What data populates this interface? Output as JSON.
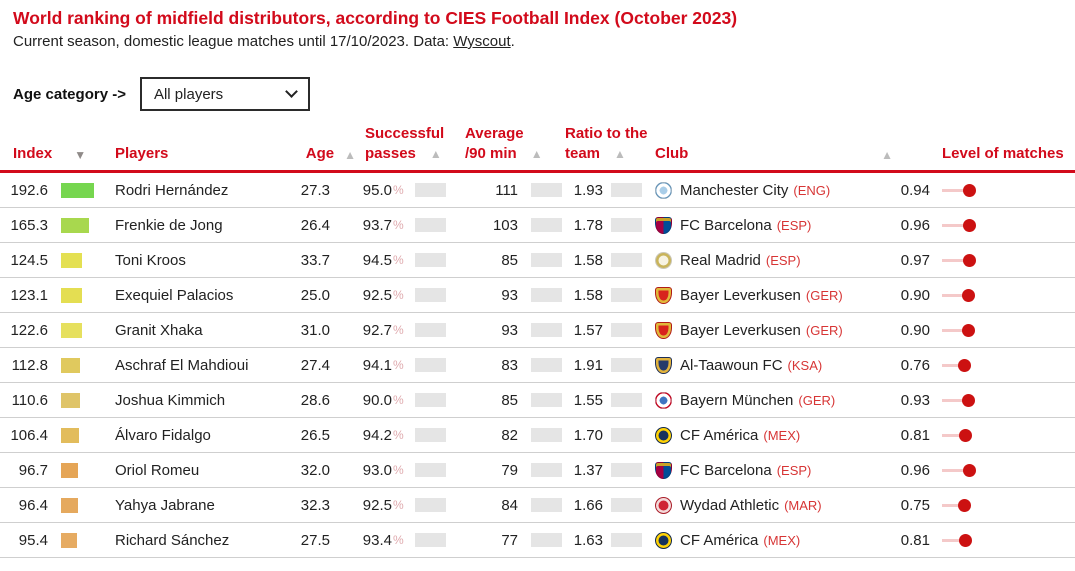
{
  "page": {
    "title": "World ranking of midfield distributors, according to CIES Football Index (October 2023)",
    "subtitle_prefix": "Current season, domestic league matches until 17/10/2023. Data: ",
    "subtitle_link": "Wyscout",
    "subtitle_suffix": "."
  },
  "filter": {
    "label": "Age category ->",
    "selected": "All players"
  },
  "icons": {
    "sort_desc": "▼",
    "sort_asc": "▲"
  },
  "colors": {
    "accent_red": "#d20a1b",
    "dot_red": "#cc1111",
    "track_pink": "#f4c9c9",
    "bar_gray": "#e5e5e5"
  },
  "table": {
    "headers": {
      "index": "Index",
      "players": "Players",
      "age": "Age",
      "passes_line1": "Successful",
      "passes_line2": "passes",
      "avg_line1": "Average",
      "avg_line2": "/90 min",
      "ratio_line1": "Ratio to the",
      "ratio_line2": "team",
      "club": "Club",
      "level": "Level of matches"
    },
    "passes_unit": "%",
    "rows": [
      {
        "index": "192.6",
        "index_color": "#76d64f",
        "player": "Rodri Hernández",
        "age": "27.3",
        "passes": "95.0",
        "avg_per_90": "111",
        "ratio": "1.93",
        "club": "Manchester City",
        "country": "ENG",
        "level": "0.94",
        "logo": {
          "shape": "circle",
          "style": "target",
          "colors": [
            "#a9cde8",
            "#ffffff",
            "#7fb0d6"
          ]
        }
      },
      {
        "index": "165.3",
        "index_color": "#a8d84e",
        "player": "Frenkie de Jong",
        "age": "26.4",
        "passes": "93.7",
        "avg_per_90": "103",
        "ratio": "1.78",
        "club": "FC Barcelona",
        "country": "ESP",
        "level": "0.96",
        "logo": {
          "shape": "shield",
          "style": "halves",
          "colors": [
            "#a50044",
            "#004d98",
            "#c9a227"
          ]
        }
      },
      {
        "index": "124.5",
        "index_color": "#e4e052",
        "player": "Toni Kroos",
        "age": "33.7",
        "passes": "94.5",
        "avg_per_90": "85",
        "ratio": "1.58",
        "club": "Real Madrid",
        "country": "ESP",
        "level": "0.97",
        "logo": {
          "shape": "circle",
          "style": "ring",
          "colors": [
            "#f7f3e2",
            "#c9b45a"
          ]
        }
      },
      {
        "index": "123.1",
        "index_color": "#e4de52",
        "player": "Exequiel Palacios",
        "age": "25.0",
        "passes": "92.5",
        "avg_per_90": "93",
        "ratio": "1.58",
        "club": "Bayer Leverkusen",
        "country": "GER",
        "level": "0.90",
        "logo": {
          "shape": "shield",
          "style": "ring",
          "colors": [
            "#d8231d",
            "#e0b93a"
          ]
        }
      },
      {
        "index": "122.6",
        "index_color": "#e6e05e",
        "player": "Granit Xhaka",
        "age": "31.0",
        "passes": "92.7",
        "avg_per_90": "93",
        "ratio": "1.57",
        "club": "Bayer Leverkusen",
        "country": "GER",
        "level": "0.90",
        "logo": {
          "shape": "shield",
          "style": "ring",
          "colors": [
            "#d8231d",
            "#e0b93a"
          ]
        }
      },
      {
        "index": "112.8",
        "index_color": "#e0c95e",
        "player": "Aschraf El Mahdioui",
        "age": "27.4",
        "passes": "94.1",
        "avg_per_90": "83",
        "ratio": "1.91",
        "club": "Al-Taawoun FC",
        "country": "KSA",
        "level": "0.76",
        "logo": {
          "shape": "shield",
          "style": "ring",
          "colors": [
            "#24396b",
            "#e2b33c"
          ]
        }
      },
      {
        "index": "110.6",
        "index_color": "#dfc468",
        "player": "Joshua Kimmich",
        "age": "28.6",
        "passes": "90.0",
        "avg_per_90": "85",
        "ratio": "1.55",
        "club": "Bayern München",
        "country": "GER",
        "level": "0.93",
        "logo": {
          "shape": "circle",
          "style": "target",
          "colors": [
            "#3f74c1",
            "#ffffff",
            "#dc0f2d"
          ]
        }
      },
      {
        "index": "106.4",
        "index_color": "#e2bc5c",
        "player": "Álvaro Fidalgo",
        "age": "26.5",
        "passes": "94.2",
        "avg_per_90": "82",
        "ratio": "1.70",
        "club": "CF América",
        "country": "MEX",
        "level": "0.81",
        "logo": {
          "shape": "circle",
          "style": "ring",
          "colors": [
            "#16325c",
            "#ffd204"
          ]
        }
      },
      {
        "index": "96.7",
        "index_color": "#e5a556",
        "player": "Oriol Romeu",
        "age": "32.0",
        "passes": "93.0",
        "avg_per_90": "79",
        "ratio": "1.37",
        "club": "FC Barcelona",
        "country": "ESP",
        "level": "0.96",
        "logo": {
          "shape": "shield",
          "style": "halves",
          "colors": [
            "#a50044",
            "#004d98",
            "#c9a227"
          ]
        }
      },
      {
        "index": "96.4",
        "index_color": "#e5a95e",
        "player": "Yahya Jabrane",
        "age": "32.3",
        "passes": "92.5",
        "avg_per_90": "84",
        "ratio": "1.66",
        "club": "Wydad Athletic",
        "country": "MAR",
        "level": "0.75",
        "logo": {
          "shape": "circle",
          "style": "ring",
          "colors": [
            "#cf2433",
            "#f3dada"
          ]
        }
      },
      {
        "index": "95.4",
        "index_color": "#e6ab62",
        "player": "Richard Sánchez",
        "age": "27.5",
        "passes": "93.4",
        "avg_per_90": "77",
        "ratio": "1.63",
        "club": "CF América",
        "country": "MEX",
        "level": "0.81",
        "logo": {
          "shape": "circle",
          "style": "ring",
          "colors": [
            "#16325c",
            "#ffd204"
          ]
        }
      }
    ]
  }
}
